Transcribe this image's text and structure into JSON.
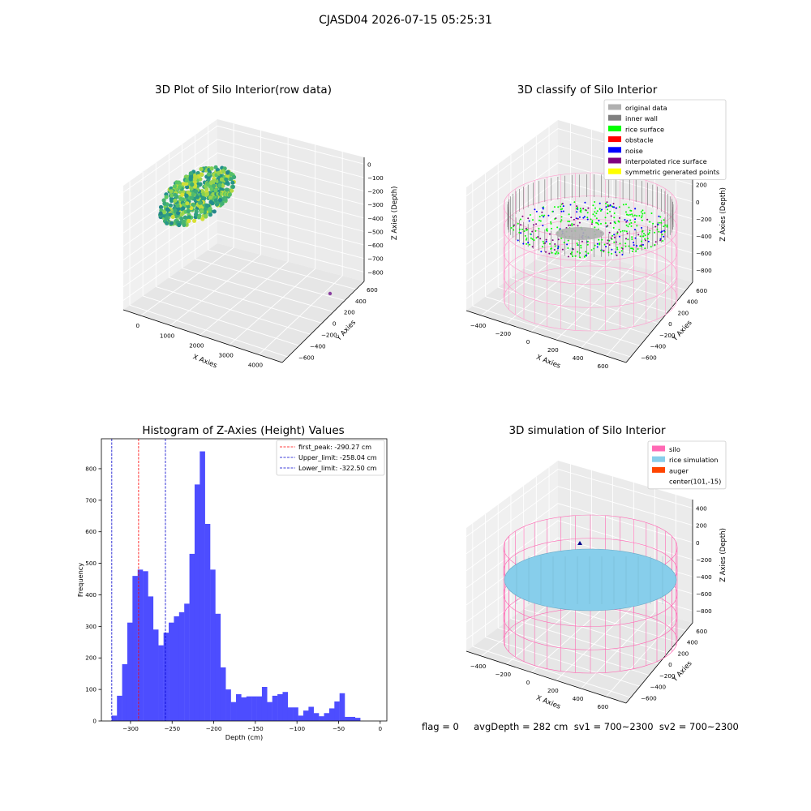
{
  "suptitle": "CJASD04 2026-07-15 05:25:31",
  "chart_data": [
    {
      "type": "scatter",
      "subtype": "3d",
      "title": "3D Plot of Silo Interior(row data)",
      "xlabel": "X Axies",
      "ylabel": "Y Axies",
      "zlabel": "Z Axies (Depth)",
      "x_ticks": [
        "0",
        "1000",
        "2000",
        "3000",
        "4000"
      ],
      "y_ticks": [
        "600",
        "400",
        "200",
        "0",
        "−200",
        "−400",
        "−600"
      ],
      "z_ticks": [
        "0",
        "−100",
        "−200",
        "−300",
        "−400",
        "−500",
        "−600",
        "−700",
        "−800"
      ],
      "colormap": "viridis"
    },
    {
      "type": "scatter",
      "subtype": "3d",
      "title": "3D classify of Silo Interior",
      "xlabel": "X Axies",
      "ylabel": "Y Axies",
      "zlabel": "Z Axies (Depth)",
      "x_ticks": [
        "−400",
        "−200",
        "0",
        "200",
        "400",
        "600"
      ],
      "y_ticks": [
        "600",
        "400",
        "200",
        "0",
        "−200",
        "−400",
        "−600"
      ],
      "z_ticks": [
        "400",
        "200",
        "0",
        "−200",
        "−400",
        "−600",
        "−800"
      ],
      "legend": {
        "placement": "top-right",
        "items": [
          {
            "label": "original data",
            "color": "#b0b0b0"
          },
          {
            "label": "inner wall",
            "color": "#808080"
          },
          {
            "label": "rice surface",
            "color": "#00ff00"
          },
          {
            "label": "obstacle",
            "color": "#ff0000"
          },
          {
            "label": "noise",
            "color": "#0000ff"
          },
          {
            "label": "interpolated rice surface",
            "color": "#800080"
          },
          {
            "label": "symmetric generated points",
            "color": "#ffff00"
          }
        ]
      }
    },
    {
      "type": "bar",
      "subtype": "histogram",
      "title": "Histogram of Z-Axies (Height) Values",
      "xlabel": "Depth (cm)",
      "ylabel": "Frequency",
      "xlim": [
        -335,
        8
      ],
      "ylim": [
        0,
        895
      ],
      "x_ticks": [
        -300,
        -250,
        -200,
        -150,
        -100,
        -50,
        0
      ],
      "y_ticks": [
        0,
        100,
        200,
        300,
        400,
        500,
        600,
        700,
        800
      ],
      "bar_color": "#4d4dff",
      "bin_start": -322.5,
      "bin_width": 6.22,
      "values": [
        17,
        80,
        180,
        312,
        460,
        480,
        475,
        395,
        290,
        240,
        280,
        312,
        332,
        345,
        372,
        530,
        750,
        855,
        625,
        480,
        340,
        170,
        100,
        60,
        85,
        75,
        78,
        78,
        78,
        108,
        60,
        80,
        85,
        92,
        43,
        43,
        17,
        33,
        45,
        25,
        15,
        25,
        40,
        62,
        88,
        13,
        13,
        10
      ],
      "vlines": [
        {
          "value": -290.27,
          "color": "#ff0000",
          "label": "first_peak: -290.27 cm"
        },
        {
          "value": -258.04,
          "color": "#0000cc",
          "label": "Upper_limit: -258.04 cm"
        },
        {
          "value": -322.5,
          "color": "#0000cc",
          "label": "Lower_limit: -322.50 cm"
        }
      ],
      "legend_placement": "top-right"
    },
    {
      "type": "scatter",
      "subtype": "3d",
      "title": "3D simulation of Silo Interior",
      "xlabel": "X Axies",
      "ylabel": "Y Axies",
      "zlabel": "Z Axies (Depth)",
      "x_ticks": [
        "−400",
        "−200",
        "0",
        "200",
        "400",
        "600"
      ],
      "y_ticks": [
        "600",
        "400",
        "200",
        "0",
        "−200",
        "−400",
        "−600"
      ],
      "z_ticks": [
        "400",
        "200",
        "0",
        "−200",
        "−400",
        "−600",
        "−800"
      ],
      "legend": {
        "placement": "top-right",
        "items": [
          {
            "label": "silo",
            "color": "#ff69b4"
          },
          {
            "label": "rice simulation",
            "color": "#87ceeb"
          },
          {
            "label": "auger",
            "color": "#ff4500"
          },
          {
            "label": "center(101,-15)",
            "color": ""
          }
        ]
      }
    }
  ],
  "status_line": "flag = 0     avgDepth = 282 cm  sv1 = 700~2300  sv2 = 700~2300"
}
